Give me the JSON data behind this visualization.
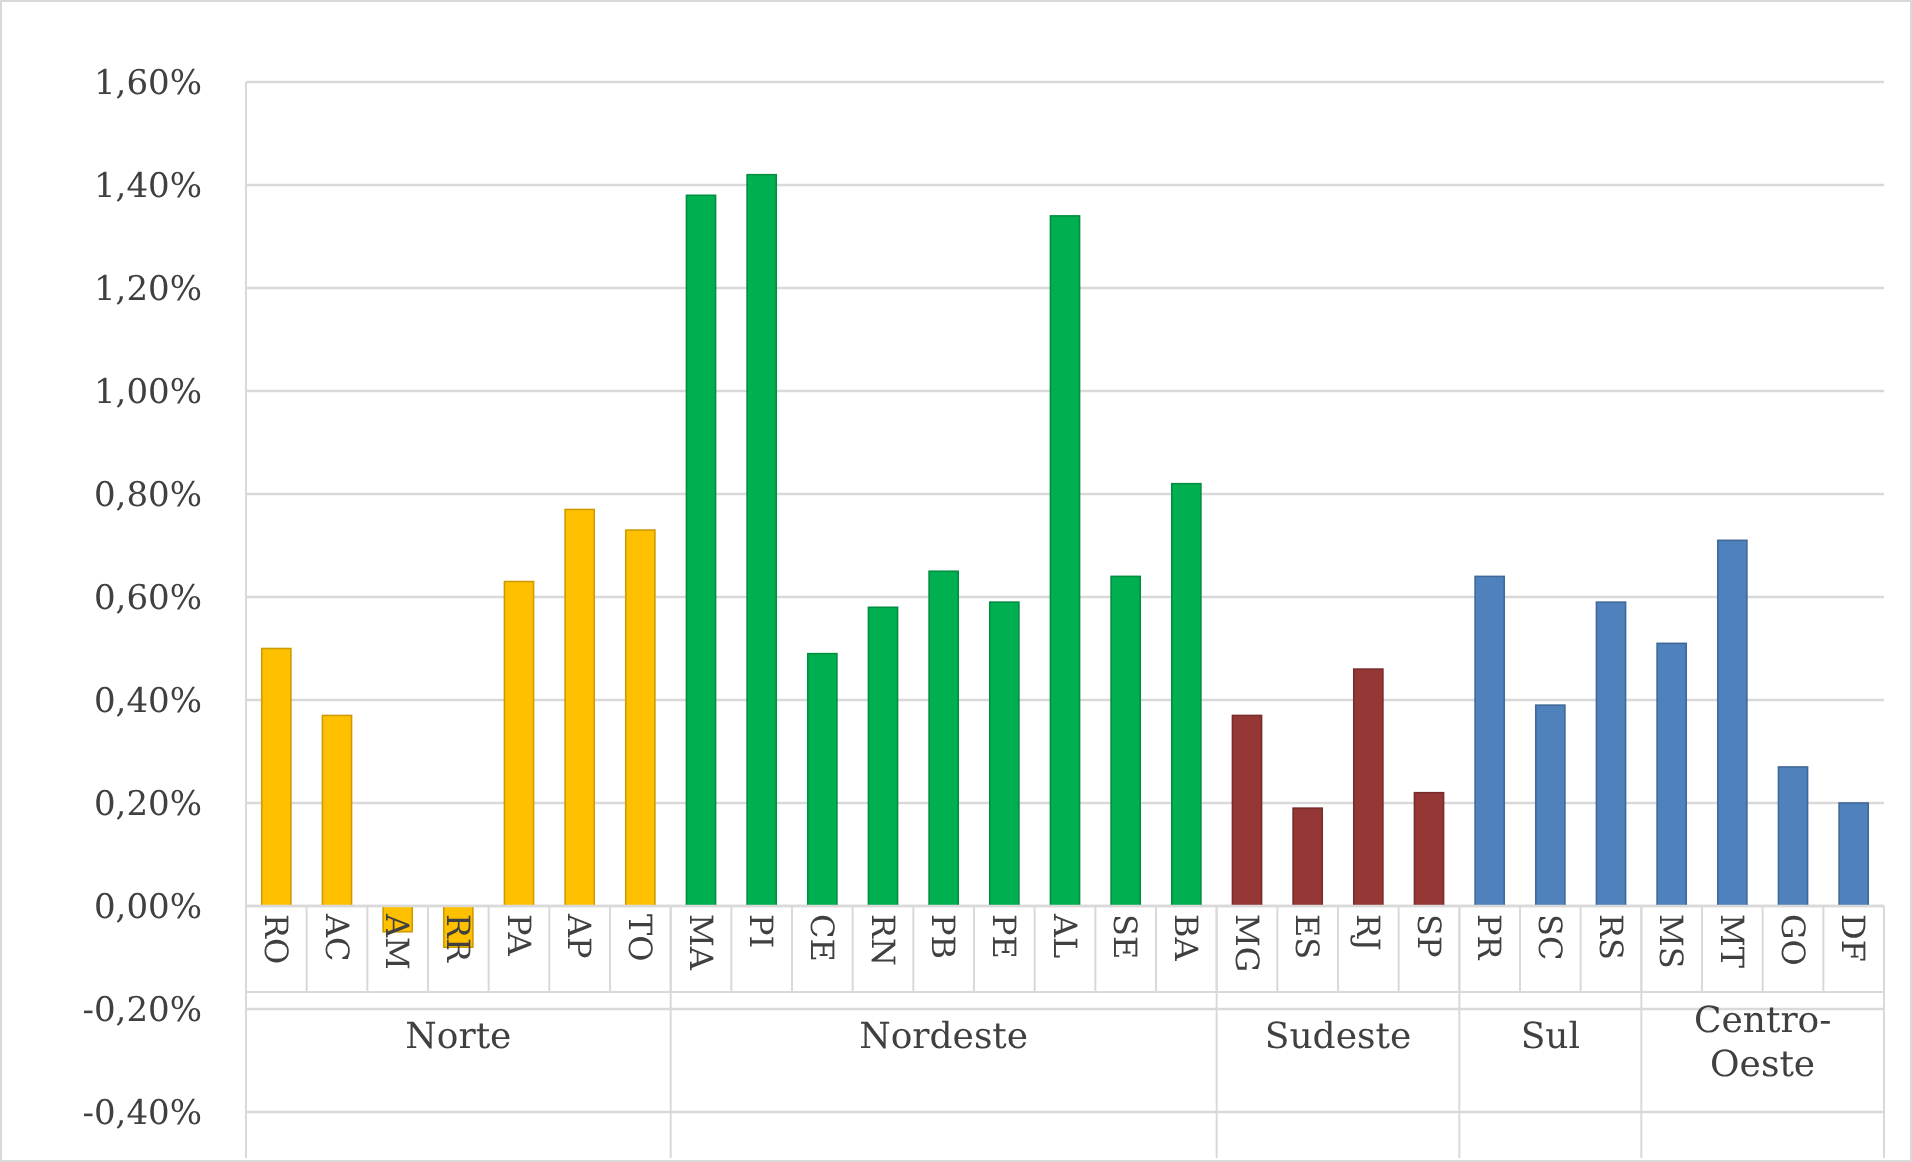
{
  "chart_data": {
    "type": "bar",
    "categories": [
      "RO",
      "AC",
      "AM",
      "RR",
      "PA",
      "AP",
      "TO",
      "MA",
      "PI",
      "CE",
      "RN",
      "PB",
      "PE",
      "AL",
      "SE",
      "BA",
      "MG",
      "ES",
      "RJ",
      "SP",
      "PR",
      "SC",
      "RS",
      "MS",
      "MT",
      "GO",
      "DF"
    ],
    "series": [
      {
        "name": "Norte",
        "color": "#ffc000",
        "values": [
          0.5,
          0.37,
          -0.05,
          -0.08,
          0.63,
          0.77,
          0.73,
          null,
          null,
          null,
          null,
          null,
          null,
          null,
          null,
          null,
          null,
          null,
          null,
          null,
          null,
          null,
          null,
          null,
          null,
          null,
          null
        ]
      },
      {
        "name": "Nordeste",
        "color": "#00b050",
        "values": [
          null,
          null,
          null,
          null,
          null,
          null,
          null,
          1.38,
          1.42,
          0.49,
          0.58,
          0.65,
          0.59,
          1.34,
          0.64,
          0.82,
          null,
          null,
          null,
          null,
          null,
          null,
          null,
          null,
          null,
          null,
          null
        ]
      },
      {
        "name": "Sudeste",
        "color": "#953735",
        "values": [
          null,
          null,
          null,
          null,
          null,
          null,
          null,
          null,
          null,
          null,
          null,
          null,
          null,
          null,
          null,
          null,
          0.37,
          0.19,
          0.46,
          0.22,
          null,
          null,
          null,
          null,
          null,
          null,
          null
        ]
      },
      {
        "name": "Sul",
        "color": "#4f81bd",
        "values": [
          null,
          null,
          null,
          null,
          null,
          null,
          null,
          null,
          null,
          null,
          null,
          null,
          null,
          null,
          null,
          null,
          null,
          null,
          null,
          null,
          0.64,
          0.39,
          0.59,
          null,
          null,
          null,
          null
        ]
      },
      {
        "name": "Centro-Oeste",
        "color": "#4f81bd",
        "values": [
          null,
          null,
          null,
          null,
          null,
          null,
          null,
          null,
          null,
          null,
          null,
          null,
          null,
          null,
          null,
          null,
          null,
          null,
          null,
          null,
          null,
          null,
          null,
          0.51,
          0.71,
          0.27,
          0.2
        ]
      }
    ],
    "ylim": [
      -0.4,
      1.6
    ],
    "yticks": [
      {
        "value": -0.4,
        "label": "-0,40%"
      },
      {
        "value": -0.2,
        "label": "-0,20%"
      },
      {
        "value": 0,
        "label": "0,00%"
      },
      {
        "value": 0.2,
        "label": "0,20%"
      },
      {
        "value": 0.4,
        "label": "0,40%"
      },
      {
        "value": 0.6,
        "label": "0,60%"
      },
      {
        "value": 0.8,
        "label": "0,80%"
      },
      {
        "value": 1.0,
        "label": "1,00%"
      },
      {
        "value": 1.2,
        "label": "1,20%"
      },
      {
        "value": 1.4,
        "label": "1,40%"
      },
      {
        "value": 1.6,
        "label": "1,60%"
      }
    ],
    "grid": "y"
  }
}
